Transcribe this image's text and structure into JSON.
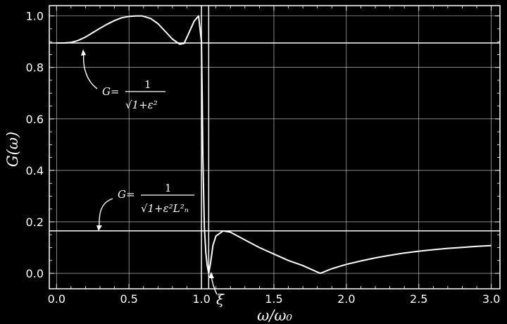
{
  "colors": {
    "background": "#000000",
    "foreground": "#ffffff",
    "grid": "#ffffff"
  },
  "chart_data": {
    "type": "line",
    "xlabel": "ω/ω₀",
    "ylabel": "G(ω)",
    "xlim": [
      -0.05,
      3.06
    ],
    "ylim": [
      -0.06,
      1.04
    ],
    "grid": true,
    "x_ticks": [
      0.0,
      0.5,
      1.0,
      1.5,
      2.0,
      2.5,
      3.0
    ],
    "x_tick_labels": [
      "0.0",
      "0.5",
      "1.0",
      "1.5",
      "2.0",
      "2.5",
      "3.0"
    ],
    "y_ticks": [
      0.0,
      0.2,
      0.4,
      0.6,
      0.8,
      1.0
    ],
    "y_tick_labels": [
      "0.0",
      "0.2",
      "0.4",
      "0.6",
      "0.8",
      "1.0"
    ],
    "reference_lines": {
      "horizontal": [
        0.895,
        0.165
      ],
      "vertical": [
        1.0,
        1.05
      ]
    },
    "series": [
      {
        "x": [
          0.0,
          0.05,
          0.1,
          0.15,
          0.2,
          0.25,
          0.3,
          0.35,
          0.4,
          0.45,
          0.5,
          0.55,
          0.59,
          0.65,
          0.7,
          0.75,
          0.8,
          0.85,
          0.88,
          0.91,
          0.95,
          0.98,
          1.0,
          1.005,
          1.01,
          1.02,
          1.03,
          1.04,
          1.05,
          1.06,
          1.07,
          1.08,
          1.1,
          1.15,
          1.2,
          1.25,
          1.3,
          1.4,
          1.5,
          1.6,
          1.7,
          1.82,
          1.9,
          2.0,
          2.1,
          2.2,
          2.3,
          2.4,
          2.5,
          2.6,
          2.7,
          2.8,
          2.9,
          3.0
        ],
        "y": [
          0.895,
          0.895,
          0.897,
          0.905,
          0.918,
          0.935,
          0.952,
          0.968,
          0.982,
          0.993,
          0.998,
          1.0,
          1.0,
          0.99,
          0.97,
          0.94,
          0.91,
          0.89,
          0.893,
          0.93,
          0.98,
          1.0,
          0.9,
          0.7,
          0.45,
          0.18,
          0.08,
          0.03,
          0.0,
          0.03,
          0.07,
          0.11,
          0.145,
          0.165,
          0.16,
          0.145,
          0.13,
          0.1,
          0.075,
          0.05,
          0.03,
          0.0,
          0.018,
          0.035,
          0.048,
          0.06,
          0.07,
          0.079,
          0.086,
          0.092,
          0.097,
          0.101,
          0.105,
          0.108
        ]
      }
    ],
    "annotations": [
      {
        "text_left": "G=",
        "numerator": "1",
        "denominator": "√1+ε²",
        "x": 0.07,
        "y": 0.895
      },
      {
        "text_left": "G=",
        "numerator": "1",
        "denominator": "√1+ε²L²ₙ",
        "x": 0.13,
        "y": 0.165
      },
      {
        "text": "ξ",
        "x": 1.05,
        "y": 0.0
      }
    ]
  }
}
